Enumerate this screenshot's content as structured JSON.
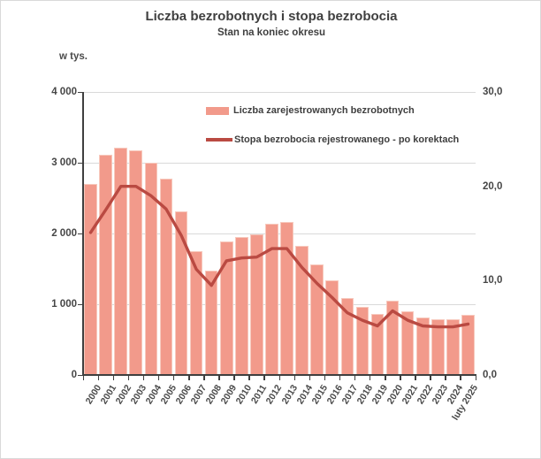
{
  "chart": {
    "title": "Liczba bezrobotnych i stopa bezrobocia",
    "subtitle": "Stan na koniec okresu",
    "left_axis_unit": "w tys.",
    "legend": {
      "bars_label": "Liczba zarejestrowanych bezrobotnych",
      "line_label": "Stopa bezrobocia rejestrowanego - po korektach"
    },
    "colors": {
      "bar_fill": "#F29A8B",
      "bar_border": "#F7C9BD",
      "line": "#BA4A42",
      "gridline": "#D9D9D9",
      "axis": "#3F3F3F",
      "text": "#464646",
      "frame_border": "#D9D9D9",
      "background": "#FFFFFF"
    }
  },
  "chart_data": {
    "type": "bar",
    "subtype": "bar+line combo, dual axis",
    "title": "Liczba bezrobotnych i stopa bezrobocia",
    "subtitle": "Stan na koniec okresu",
    "categories": [
      "2000",
      "2001",
      "2002",
      "2003",
      "2004",
      "2005",
      "2006",
      "2007",
      "2008",
      "2009",
      "2010",
      "2011",
      "2012",
      "2013",
      "2014",
      "2015",
      "2016",
      "2017",
      "2018",
      "2019",
      "2020",
      "2021",
      "2022",
      "2023",
      "2024",
      "luty 2025"
    ],
    "series": [
      {
        "name": "Liczba zarejestrowanych bezrobotnych",
        "type": "bar",
        "axis": "left",
        "unit": "tys.",
        "values": [
          2702.6,
          3115.1,
          3217.0,
          3175.7,
          2999.6,
          2773.0,
          2309.4,
          1746.6,
          1473.8,
          1892.7,
          1954.7,
          1982.7,
          2136.8,
          2157.9,
          1825.2,
          1563.3,
          1335.2,
          1081.7,
          968.9,
          866.4,
          1046.4,
          895.2,
          812.3,
          788.2,
          786.5,
          854.0
        ]
      },
      {
        "name": "Stopa bezrobocia rejestrowanego - po korektach",
        "type": "line",
        "axis": "right",
        "unit": "%",
        "values": [
          15.1,
          17.5,
          20.0,
          20.0,
          19.0,
          17.6,
          14.8,
          11.2,
          9.5,
          12.1,
          12.4,
          12.5,
          13.4,
          13.4,
          11.4,
          9.7,
          8.2,
          6.6,
          5.8,
          5.2,
          6.8,
          5.8,
          5.2,
          5.1,
          5.1,
          5.4
        ]
      }
    ],
    "left_axis": {
      "label": "w tys.",
      "range": [
        0,
        4000
      ],
      "ticks": [
        {
          "value": 4000,
          "label": "4 000"
        },
        {
          "value": 3000,
          "label": "3 000"
        },
        {
          "value": 2000,
          "label": "2 000"
        },
        {
          "value": 1000,
          "label": "1 000"
        },
        {
          "value": 0,
          "label": "0"
        }
      ]
    },
    "right_axis": {
      "range": [
        0,
        30
      ],
      "ticks": [
        {
          "value": 30,
          "label": "30,0"
        },
        {
          "value": 20,
          "label": "20,0"
        },
        {
          "value": 10,
          "label": "10,0"
        },
        {
          "value": 0,
          "label": "0,0"
        }
      ]
    },
    "grid": "horizontal gridlines at left-axis ticks",
    "legend_position": "inside plot, upper area"
  }
}
